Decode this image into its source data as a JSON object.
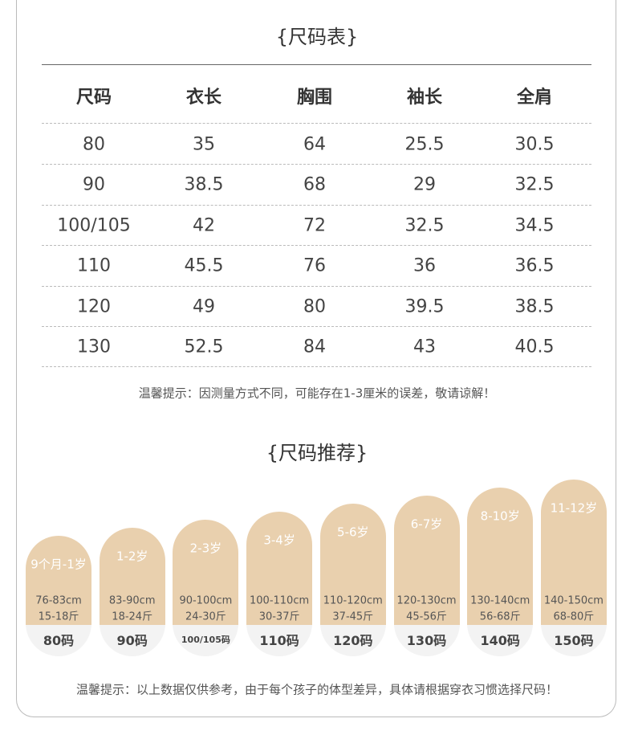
{
  "size_table": {
    "title": "{尺码表}",
    "headers": [
      "尺码",
      "衣长",
      "胸围",
      "袖长",
      "全肩"
    ],
    "rows": [
      [
        "80",
        "35",
        "64",
        "25.5",
        "30.5"
      ],
      [
        "90",
        "38.5",
        "68",
        "29",
        "32.5"
      ],
      [
        "100/105",
        "42",
        "72",
        "32.5",
        "34.5"
      ],
      [
        "110",
        "45.5",
        "76",
        "36",
        "36.5"
      ],
      [
        "120",
        "49",
        "80",
        "39.5",
        "38.5"
      ],
      [
        "130",
        "52.5",
        "84",
        "43",
        "40.5"
      ]
    ],
    "note": "温馨提示：因测量方式不同，可能存在1-3厘米的误差，敬请谅解！"
  },
  "recommend": {
    "title": "{尺码推荐}",
    "cards": [
      {
        "age": "9个月-1岁",
        "height": "76-83cm",
        "weight": "15-18斤",
        "size": "80码"
      },
      {
        "age": "1-2岁",
        "height": "83-90cm",
        "weight": "18-24斤",
        "size": "90码"
      },
      {
        "age": "2-3岁",
        "height": "90-100cm",
        "weight": "24-30斤",
        "size": "100/105码"
      },
      {
        "age": "3-4岁",
        "height": "100-110cm",
        "weight": "30-37斤",
        "size": "110码"
      },
      {
        "age": "5-6岁",
        "height": "110-120cm",
        "weight": "37-45斤",
        "size": "120码"
      },
      {
        "age": "6-7岁",
        "height": "120-130cm",
        "weight": "45-56斤",
        "size": "130码"
      },
      {
        "age": "8-10岁",
        "height": "130-140cm",
        "weight": "56-68斤",
        "size": "140码"
      },
      {
        "age": "11-12岁",
        "height": "140-150cm",
        "weight": "68-80斤",
        "size": "150码"
      }
    ],
    "note": "温馨提示：以上数据仅供参考，由于每个孩子的体型差异，具体请根据穿衣习惯选择尺码！"
  }
}
